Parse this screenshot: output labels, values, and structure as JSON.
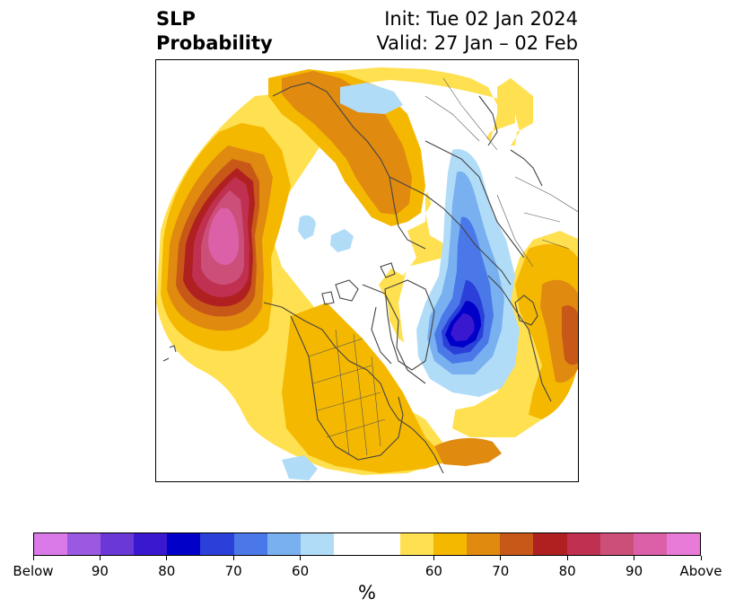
{
  "header": {
    "title_line1": "SLP",
    "title_line2": "Probability",
    "init": "Init: Tue 02 Jan 2024",
    "valid": "Valid: 27 Jan – 02 Feb"
  },
  "colorbar": {
    "colors": [
      "#d97ae8",
      "#9b58e0",
      "#6b38d8",
      "#3a18d0",
      "#0000c8",
      "#2a40d8",
      "#4a78e8",
      "#78b0f0",
      "#b0dcf8",
      "#ffffff",
      "#ffffff",
      "#ffe050",
      "#f5b800",
      "#e08a10",
      "#c85818",
      "#b02020",
      "#c03050",
      "#cc4f7a",
      "#dc60a8",
      "#e87ad8"
    ],
    "tick_labels": [
      "Below",
      "90",
      "80",
      "70",
      "60",
      "60",
      "70",
      "80",
      "90",
      "Above"
    ],
    "unit": "%"
  },
  "map": {
    "projection": "north-polar-stereographic",
    "colors": {
      "above_60": "#ffe050",
      "above_65": "#f5b800",
      "above_70": "#e08a10",
      "above_75": "#c85818",
      "above_80": "#b02020",
      "above_85": "#c03050",
      "above_90": "#cc4f7a",
      "above_95": "#dc60a8",
      "below_60": "#b0dcf8",
      "below_65": "#78b0f0",
      "below_70": "#4a78e8",
      "below_75": "#2a40d8",
      "below_80": "#0000c8",
      "below_85": "#3a18d0",
      "coastline": "#444444"
    }
  }
}
